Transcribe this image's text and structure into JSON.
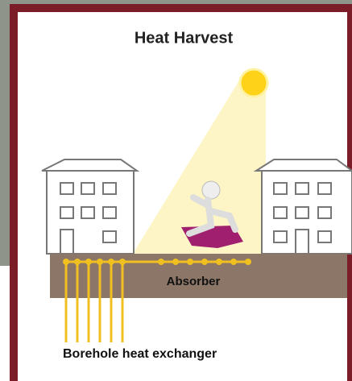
{
  "title": "Heat Harvest",
  "labels": {
    "absorber": "Absorber",
    "borehole": "Borehole heat exchanger"
  }
}
